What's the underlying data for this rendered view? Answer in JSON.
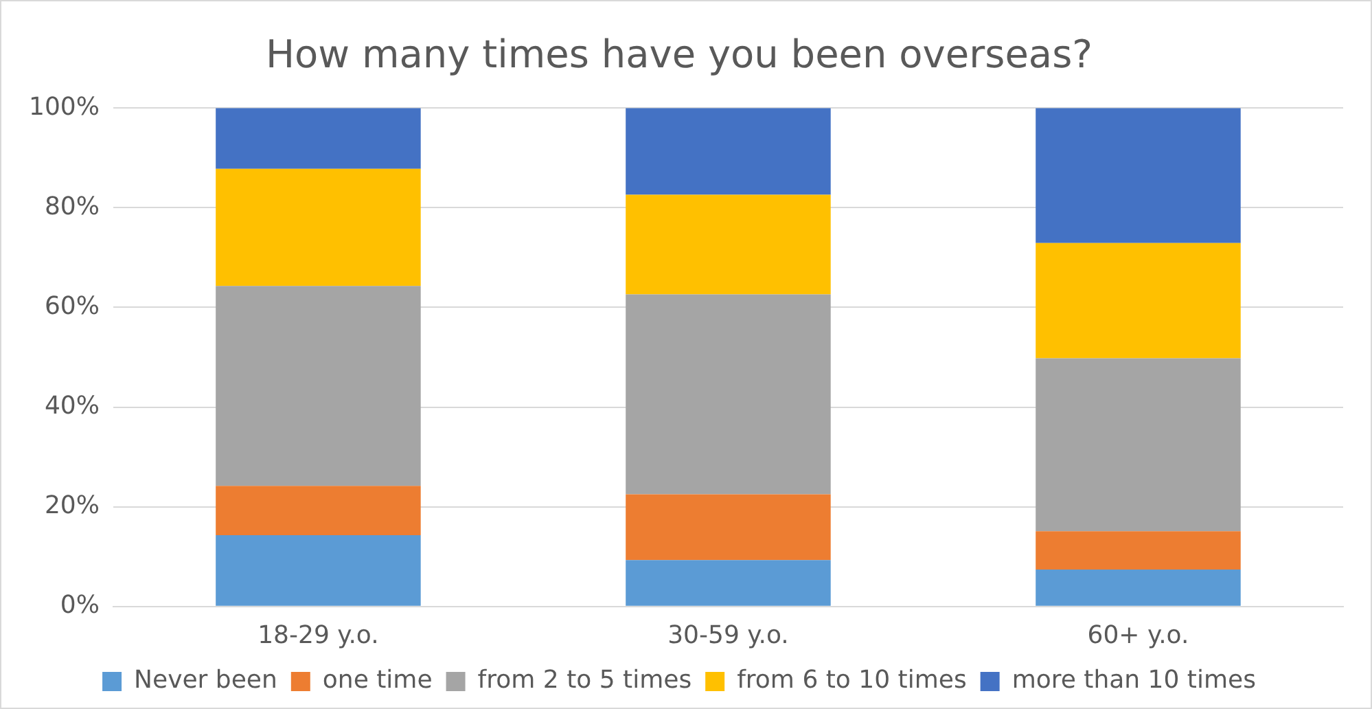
{
  "chart_data": {
    "type": "bar",
    "stacked": true,
    "title": "How many times have you been overseas?",
    "categories": [
      "18-29 y.o.",
      "30-59 y.o.",
      "60+ y.o."
    ],
    "series": [
      {
        "name": "Never been",
        "color": "#5b9bd5",
        "values": [
          14.3,
          9.3,
          7.4
        ]
      },
      {
        "name": "one time",
        "color": "#ed7d31",
        "values": [
          9.9,
          13.2,
          7.7
        ]
      },
      {
        "name": "from 2 to 5 times",
        "color": "#a5a5a5",
        "values": [
          40.1,
          40.1,
          34.7
        ]
      },
      {
        "name": "from 6 to 10 times",
        "color": "#ffc000",
        "values": [
          23.5,
          20,
          23.1
        ]
      },
      {
        "name": "more than 10 times",
        "color": "#4472c4",
        "values": [
          12.2,
          17.4,
          27.1
        ]
      }
    ],
    "ylim": [
      0,
      100
    ],
    "yticks": [
      {
        "value": 0,
        "label": "0%"
      },
      {
        "value": 20,
        "label": "20%"
      },
      {
        "value": 40,
        "label": "40%"
      },
      {
        "value": 60,
        "label": "60%"
      },
      {
        "value": 80,
        "label": "80%"
      },
      {
        "value": 100,
        "label": "100%"
      }
    ],
    "grid": "y",
    "legend": "bottom"
  }
}
